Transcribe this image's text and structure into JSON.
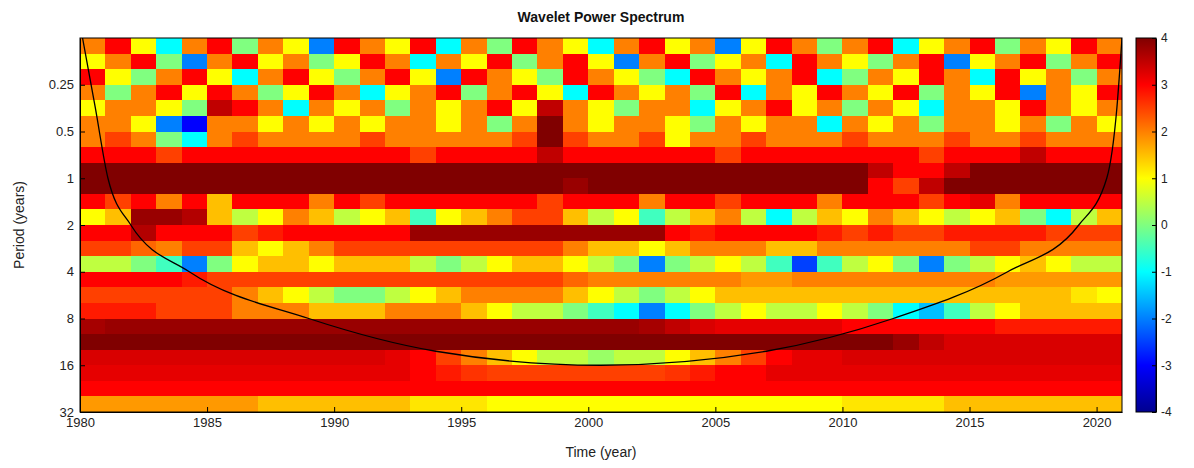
{
  "chart_data": {
    "type": "heatmap",
    "title": "Wavelet Power Spectrum",
    "x_label": "Time (year)",
    "y_label": "Period (years)",
    "log": "y",
    "xlim": [
      1980,
      2021
    ],
    "xticks": [
      1980,
      1985,
      1990,
      1995,
      2000,
      2005,
      2010,
      2015,
      2020
    ],
    "ylim": [
      0.125,
      32
    ],
    "yticks": [
      0.25,
      0.5,
      1,
      2,
      4,
      8,
      16,
      32
    ],
    "x_bins": [
      1980,
      1981,
      1982,
      1983,
      1984,
      1985,
      1986,
      1987,
      1988,
      1989,
      1990,
      1991,
      1992,
      1993,
      1994,
      1995,
      1996,
      1997,
      1998,
      1999,
      2000,
      2001,
      2002,
      2003,
      2004,
      2005,
      2006,
      2007,
      2008,
      2009,
      2010,
      2011,
      2012,
      2013,
      2014,
      2015,
      2016,
      2017,
      2018,
      2019,
      2020,
      2021
    ],
    "y_bins": [
      0.125,
      0.1575,
      0.1984,
      0.25,
      0.315,
      0.3969,
      0.5,
      0.63,
      0.7937,
      1,
      1.26,
      1.587,
      2,
      2.52,
      3.175,
      4,
      5.04,
      6.35,
      8,
      10.08,
      12.7,
      16,
      20.16,
      25.4,
      32
    ],
    "values": [
      [
        2,
        3,
        1,
        -1,
        2,
        3,
        0,
        2,
        1,
        -2,
        3,
        2,
        1,
        3,
        -1,
        2,
        0,
        3,
        2,
        1,
        -1,
        2,
        3,
        1,
        2,
        -2,
        1,
        3,
        2,
        0,
        2,
        3,
        -1,
        1,
        2,
        3,
        0,
        2,
        1,
        3,
        2
      ],
      [
        1,
        2,
        3,
        0,
        -2,
        2,
        3,
        1,
        2,
        0,
        1,
        3,
        2,
        -1,
        2,
        1,
        3,
        0,
        2,
        3,
        1,
        -2,
        2,
        3,
        0,
        1,
        2,
        -1,
        3,
        2,
        1,
        0,
        2,
        3,
        -2,
        1,
        2,
        3,
        0,
        2,
        3
      ],
      [
        3,
        1,
        0,
        2,
        3,
        1,
        -1,
        2,
        3,
        1,
        0,
        2,
        3,
        1,
        -2,
        3,
        2,
        1,
        0,
        3,
        2,
        1,
        0,
        -1,
        3,
        2,
        1,
        2,
        3,
        -1,
        0,
        2,
        1,
        3,
        2,
        -1,
        3,
        1,
        2,
        0,
        2
      ],
      [
        2,
        0,
        2,
        3,
        1,
        3,
        2,
        0,
        1,
        3,
        2,
        -1,
        1,
        2,
        3,
        0,
        2,
        3,
        1,
        -1,
        3,
        2,
        1,
        2,
        0,
        3,
        -1,
        2,
        1,
        3,
        2,
        1,
        3,
        0,
        2,
        1,
        3,
        -2,
        2,
        1,
        3
      ],
      [
        1,
        2,
        2,
        1,
        0,
        3.5,
        3,
        2,
        -1,
        2,
        1,
        2,
        0,
        2,
        1,
        2,
        3,
        1,
        3.5,
        2,
        1,
        0,
        2,
        2,
        -1,
        1,
        2,
        3,
        1,
        2,
        0,
        2,
        1,
        -1,
        2,
        2,
        1,
        3,
        2,
        1,
        2
      ],
      [
        2,
        2,
        1,
        -2,
        -3,
        2,
        2,
        1,
        2,
        1,
        2,
        1,
        2,
        2,
        1,
        2,
        0,
        2,
        4,
        2,
        1,
        2,
        2,
        1,
        0,
        2,
        1,
        2,
        2,
        -1,
        2,
        1,
        2,
        0,
        2,
        2,
        1,
        2,
        0,
        2,
        1
      ],
      [
        2,
        2.5,
        2,
        0,
        -1,
        2,
        2.5,
        2,
        2,
        2,
        2,
        2.5,
        2,
        2,
        2,
        2,
        2,
        2.5,
        4,
        2.5,
        2,
        2,
        2.5,
        1,
        2,
        2,
        2.5,
        2,
        2,
        2,
        2.5,
        2,
        2,
        2,
        2.5,
        2,
        2,
        2.5,
        2,
        2,
        2
      ],
      [
        3,
        3,
        3,
        2.5,
        3,
        3,
        3,
        3,
        3,
        3,
        3,
        3,
        3,
        2.5,
        3,
        3,
        3,
        3,
        3.5,
        3,
        3,
        3,
        3,
        3,
        3,
        2.5,
        3,
        3,
        3,
        3,
        3,
        3,
        3,
        2.5,
        3,
        3,
        3,
        3.5,
        3,
        3,
        3
      ],
      [
        4,
        4,
        4,
        4,
        4,
        4,
        4,
        4,
        4,
        4,
        4,
        4,
        4,
        4,
        4,
        4,
        4,
        4,
        4,
        4,
        4,
        4,
        4,
        4,
        4,
        4,
        4,
        4,
        4,
        4,
        4,
        3.5,
        3,
        3,
        3.5,
        4,
        4,
        4,
        4,
        4,
        4
      ],
      [
        4,
        4,
        4,
        4,
        4,
        4,
        4,
        4,
        4,
        4,
        4,
        4,
        4,
        4,
        4,
        4,
        4,
        4,
        4,
        3.8,
        4,
        4,
        4,
        4,
        4,
        4,
        4,
        4,
        4,
        4,
        4,
        3,
        2.5,
        3.5,
        4,
        4,
        4,
        4,
        4,
        4,
        4
      ],
      [
        3,
        2.5,
        3,
        2,
        3,
        1.5,
        3,
        3,
        3,
        2,
        3,
        2.5,
        3,
        3,
        3,
        3,
        3,
        3,
        2.5,
        3,
        3,
        3,
        2,
        3,
        3,
        2.5,
        3,
        3,
        3,
        2,
        3,
        3,
        3,
        2.5,
        3,
        3.2,
        2,
        3,
        3,
        3,
        3
      ],
      [
        1,
        1.5,
        3.8,
        3.8,
        3.6,
        1.5,
        0.5,
        1,
        2,
        1.5,
        0.5,
        1,
        1.5,
        -0.5,
        1,
        1.5,
        2,
        2.5,
        2.5,
        1.5,
        0.5,
        1,
        -0.5,
        0.5,
        1.5,
        2,
        0.5,
        -1,
        0.5,
        1.5,
        1,
        2,
        1.5,
        1,
        0.5,
        1,
        1.5,
        0,
        -1,
        0.5,
        1.5
      ],
      [
        3,
        3,
        3.6,
        3,
        3,
        3,
        2.5,
        2.8,
        3,
        3,
        3,
        3,
        3,
        3.8,
        3.8,
        3.8,
        3.8,
        3.8,
        3.8,
        3.8,
        3.8,
        3.8,
        3.8,
        3,
        2.8,
        3,
        3,
        3,
        3,
        2.8,
        2.5,
        2.8,
        2.5,
        2.5,
        2.8,
        2.8,
        2.8,
        2.8,
        2.5,
        2.5,
        2.5
      ],
      [
        2.5,
        2.5,
        2.2,
        2,
        2.5,
        2.5,
        1.5,
        1,
        1.5,
        2,
        2.5,
        2.5,
        2.5,
        2.5,
        2.5,
        2.5,
        2.5,
        2.5,
        2.5,
        2,
        1.5,
        1.5,
        1,
        1.5,
        2,
        2,
        2,
        1.5,
        1.5,
        2,
        2,
        2,
        2,
        2,
        2,
        2.5,
        2.5,
        2,
        2,
        2,
        2
      ],
      [
        0.5,
        0.5,
        0,
        -0.5,
        -2,
        0,
        1,
        1.5,
        1.5,
        1,
        1.5,
        1.5,
        1.5,
        0.5,
        0,
        0.5,
        1,
        1.5,
        1.5,
        1,
        0.5,
        0,
        -2,
        0,
        0.5,
        1,
        0.5,
        -0.5,
        -2.5,
        -0.5,
        0.5,
        1,
        0,
        -2,
        0,
        0.5,
        1,
        1.5,
        1,
        0.5,
        0.5
      ],
      [
        3,
        3,
        3,
        3,
        2.8,
        2.5,
        2.5,
        2.5,
        2.5,
        2.5,
        2.5,
        2.5,
        2.5,
        2.5,
        2.5,
        2.5,
        2.5,
        2.5,
        2.5,
        2.2,
        2,
        2,
        2,
        2,
        2,
        2,
        1.8,
        1.8,
        2,
        2,
        2,
        2,
        2,
        2,
        2,
        2,
        1.8,
        1.8,
        1.8,
        1.8,
        1.8
      ],
      [
        2.5,
        2.5,
        2.5,
        2.5,
        2.5,
        2.5,
        2,
        1.5,
        1,
        0.5,
        0,
        0,
        0.5,
        1,
        1.5,
        2,
        2,
        2,
        2,
        1.5,
        1,
        0.5,
        0,
        0.5,
        1,
        1.5,
        1.5,
        1.5,
        1.5,
        1.5,
        1.5,
        1.5,
        1.5,
        1.5,
        1.5,
        1.5,
        1.5,
        1.5,
        1.5,
        1.2,
        1
      ],
      [
        2.8,
        2.8,
        2.8,
        2.5,
        2.5,
        2.5,
        2,
        2,
        2,
        1.5,
        1.5,
        1.5,
        2,
        2,
        2,
        1.5,
        1,
        0.5,
        0.5,
        0,
        -0.5,
        -1,
        -2,
        -1,
        0,
        0.5,
        1,
        0.5,
        0.5,
        1,
        0.5,
        0,
        -1,
        -1.5,
        -0.5,
        0.5,
        1,
        1.5,
        1.5,
        1.5,
        1.5
      ],
      [
        3.7,
        3.8,
        3.8,
        3.8,
        3.8,
        3.8,
        3.8,
        3.8,
        3.8,
        3.8,
        3.8,
        3.8,
        3.8,
        3.8,
        3.8,
        3.8,
        3.8,
        3.8,
        3.8,
        3.8,
        3.8,
        3.8,
        3.7,
        3.5,
        3.3,
        3.2,
        3.2,
        3.2,
        3.2,
        3.2,
        3,
        3,
        3,
        3,
        3,
        3,
        2.8,
        2.8,
        2.8,
        2.8,
        2.8
      ],
      [
        4,
        4,
        4,
        4,
        4,
        4,
        4,
        4,
        4,
        4,
        4,
        4,
        4,
        4,
        4,
        4,
        4,
        4,
        4,
        4,
        4,
        4,
        4,
        4,
        4,
        4,
        4,
        4,
        4,
        4,
        4,
        4,
        3.8,
        3.5,
        3.3,
        3.3,
        3.3,
        3.3,
        3.3,
        3.3,
        3.3
      ],
      [
        3.3,
        3.3,
        3.3,
        3.3,
        3.3,
        3.3,
        3.3,
        3.3,
        3.3,
        3.3,
        3.3,
        3.3,
        3.2,
        3,
        2.5,
        2,
        1.5,
        1,
        0.5,
        0.5,
        0.2,
        0.5,
        0.5,
        1,
        1.5,
        2,
        2.5,
        3,
        3.2,
        3.2,
        3.3,
        3.3,
        3.3,
        3.3,
        3.3,
        3.3,
        3.3,
        3.3,
        3.3,
        3.3,
        3.3
      ],
      [
        3.2,
        3.2,
        3.2,
        3.2,
        3.2,
        3.2,
        3.2,
        3.2,
        3.2,
        3.2,
        3.2,
        3.2,
        3.2,
        3,
        2.8,
        2.6,
        2.5,
        2.5,
        2.5,
        2.5,
        2.5,
        2.5,
        2.5,
        2.6,
        2.8,
        3,
        3,
        3.2,
        3.2,
        3.2,
        3.2,
        3.2,
        3.2,
        3.2,
        3.2,
        3.2,
        3.2,
        3.2,
        3.2,
        3.2,
        3.2
      ],
      [
        3,
        3,
        3,
        3,
        3,
        3,
        3,
        3,
        3,
        3,
        3,
        3,
        3,
        3,
        3,
        3,
        3,
        3,
        3,
        3,
        3,
        3,
        3,
        3,
        3,
        3,
        3,
        3,
        3,
        3,
        3,
        3,
        3,
        3,
        3,
        3,
        3,
        3,
        3,
        3,
        3
      ],
      [
        1.8,
        1.8,
        1.8,
        1.8,
        1.8,
        1.8,
        1.8,
        1.5,
        1.5,
        1.5,
        1.5,
        1.5,
        1.5,
        1.2,
        1.2,
        1.2,
        1,
        1,
        1,
        1,
        1,
        1,
        1,
        1,
        1,
        1,
        1,
        1,
        1,
        1,
        1.2,
        1.2,
        1.2,
        1.2,
        1.5,
        1.5,
        1.5,
        1.5,
        1.5,
        1.5,
        1.5
      ]
    ],
    "colorbar": {
      "range": [
        -4,
        4
      ],
      "ticks": [
        -4,
        -3,
        -2,
        -1,
        0,
        1,
        2,
        3,
        4
      ]
    },
    "coi": {
      "x": [
        1980.1,
        1980.6,
        1981.1,
        1982,
        1984.3,
        1989,
        1994,
        2000.5,
        2007,
        2012,
        2016.5,
        2019.3,
        2020.4,
        2020.8,
        2021
      ],
      "y": [
        0.125,
        0.35,
        1,
        2,
        4,
        8,
        13,
        16,
        13,
        8,
        4,
        2,
        1,
        0.35,
        0.125
      ]
    }
  }
}
